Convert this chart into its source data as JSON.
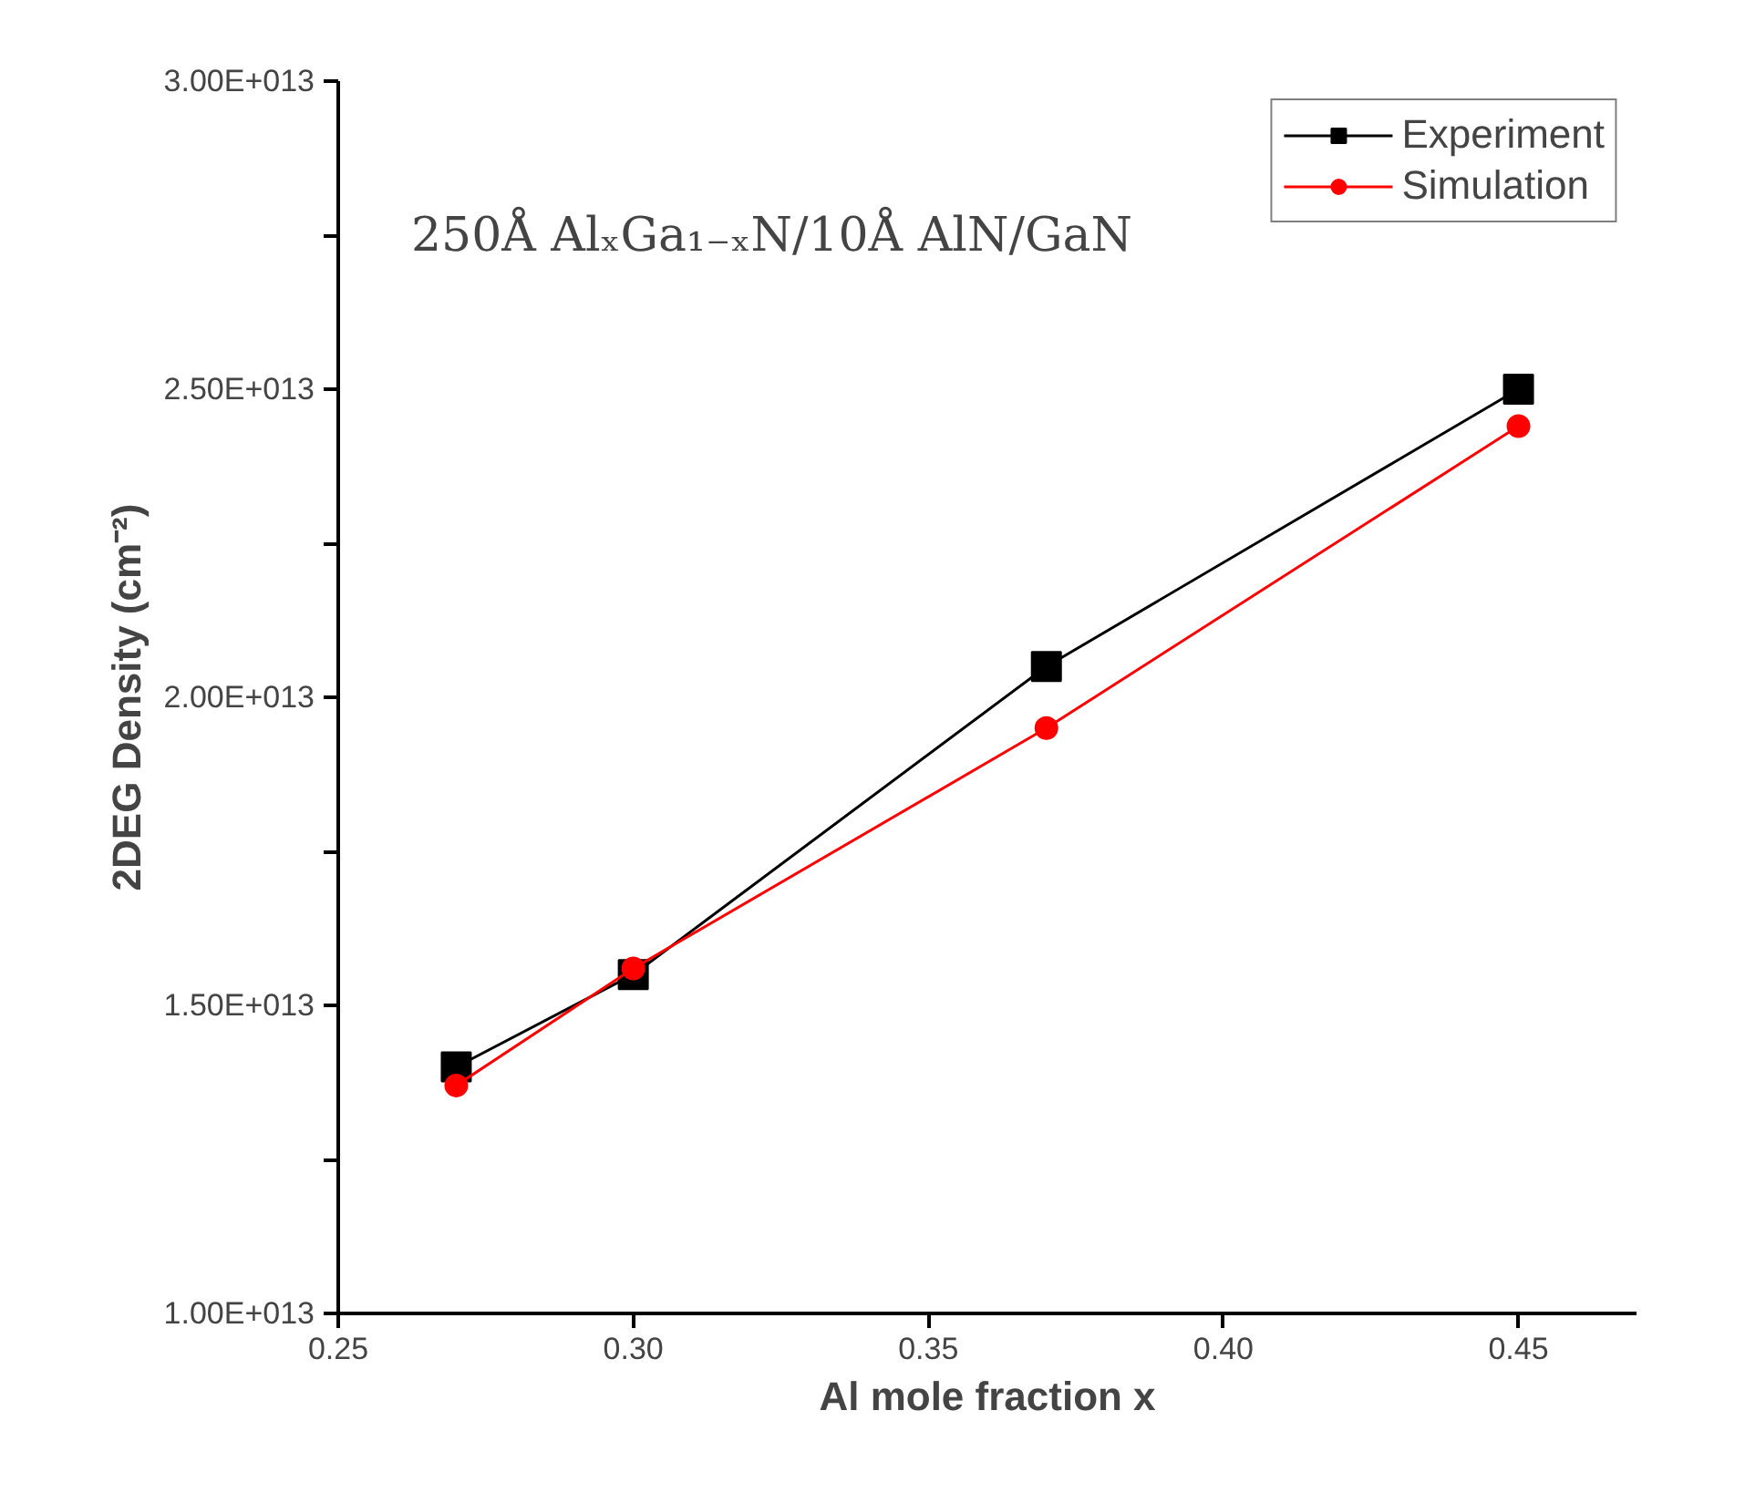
{
  "chart_data": {
    "type": "line",
    "xlabel": "Al mole fraction x",
    "ylabel": "2DEG Density (cm⁻²)",
    "annotations": [
      "250Å AlₓGa₁₋ₓN/10Å AlN/GaN"
    ],
    "x": [
      0.27,
      0.3,
      0.37,
      0.45
    ],
    "series": [
      {
        "name": "Experiment",
        "color": "#000000",
        "marker": "square",
        "values": [
          14000000000000.0,
          15500000000000.0,
          20500000000000.0,
          25000000000000.0
        ]
      },
      {
        "name": "Simulation",
        "color": "#ff0000",
        "marker": "circle",
        "values": [
          13700000000000.0,
          15600000000000.0,
          19500000000000.0,
          24400000000000.0
        ]
      }
    ],
    "xlim": [
      0.25,
      0.47
    ],
    "ylim": [
      10000000000000.0,
      30000000000000.0
    ],
    "xticks": [
      {
        "value": 0.25,
        "label": "0.25"
      },
      {
        "value": 0.3,
        "label": "0.30"
      },
      {
        "value": 0.35,
        "label": "0.35"
      },
      {
        "value": 0.4,
        "label": "0.40"
      },
      {
        "value": 0.45,
        "label": "0.45"
      }
    ],
    "yticks": [
      {
        "value": 10000000000000.0,
        "label": "1.00E+013"
      },
      {
        "value": 12500000000000.0,
        "label": null
      },
      {
        "value": 15000000000000.0,
        "label": "1.50E+013"
      },
      {
        "value": 17500000000000.0,
        "label": null
      },
      {
        "value": 20000000000000.0,
        "label": "2.00E+013"
      },
      {
        "value": 22500000000000.0,
        "label": null
      },
      {
        "value": 25000000000000.0,
        "label": "2.50E+013"
      },
      {
        "value": 27500000000000.0,
        "label": null
      },
      {
        "value": 30000000000000.0,
        "label": "3.00E+013"
      }
    ],
    "grid": false,
    "legend": "top right",
    "line_style": "solid"
  }
}
